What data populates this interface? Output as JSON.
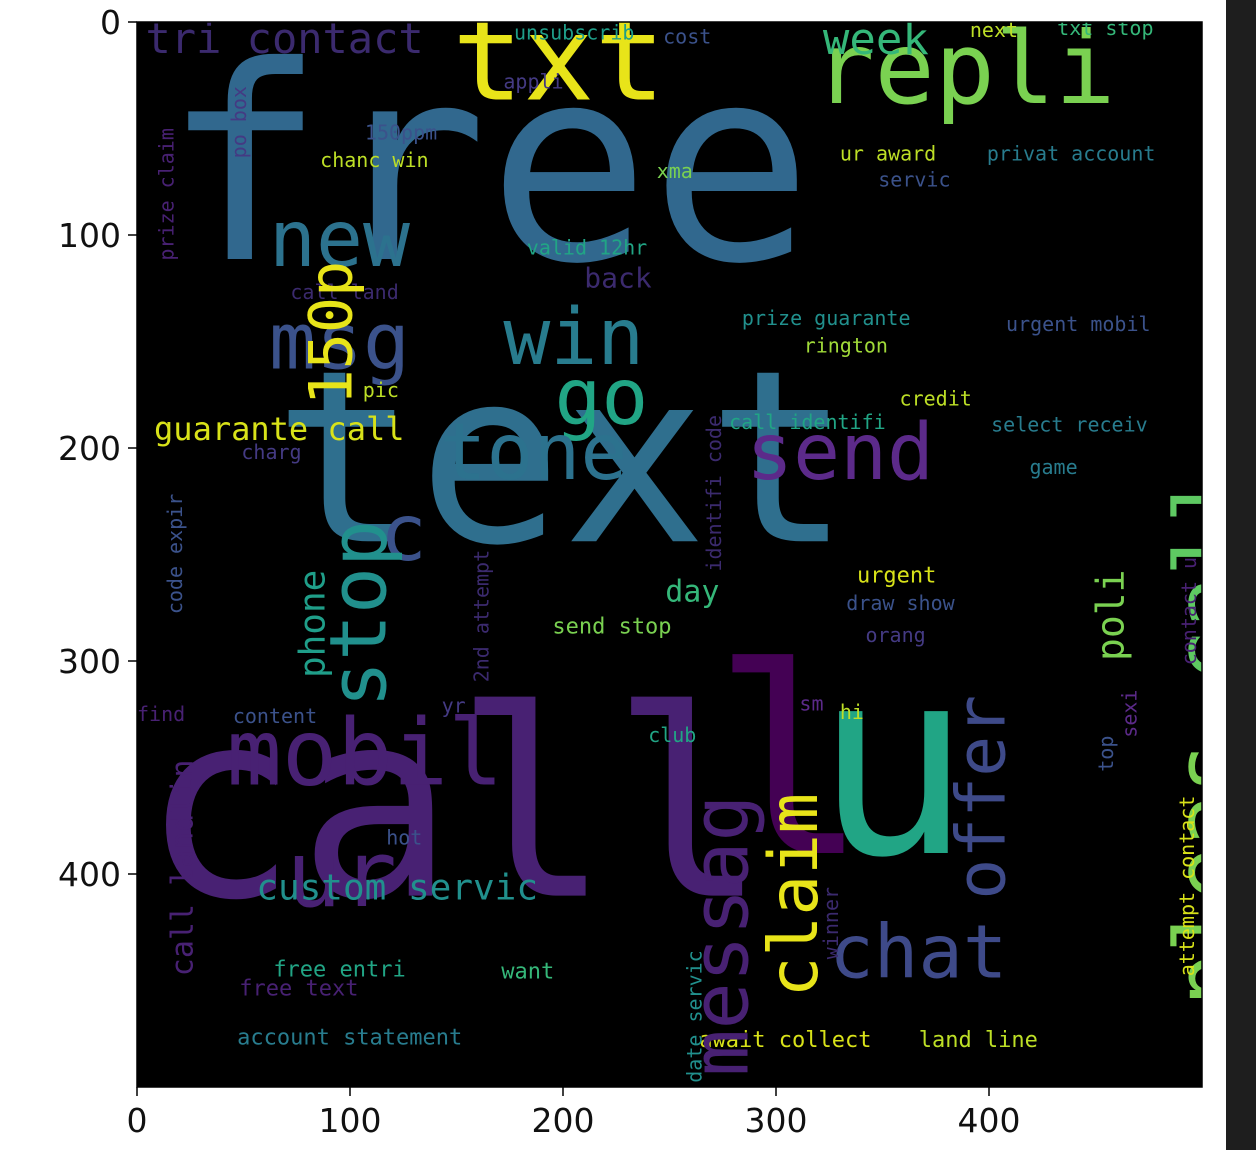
{
  "chart_data": {
    "type": "wordcloud",
    "xlim": [
      0,
      500
    ],
    "ylim": [
      500,
      0
    ],
    "xticks": [
      0,
      100,
      200,
      300,
      400
    ],
    "yticks": [
      0,
      100,
      200,
      300,
      400
    ],
    "background": "#000000",
    "grid": false,
    "words": [
      {
        "text": "free",
        "x": 12,
        "y": 17,
        "size": 270,
        "color": "#31688e",
        "rotate": false
      },
      {
        "text": "text",
        "x": 64,
        "y": 160,
        "size": 240,
        "color": "#2f6f8e",
        "rotate": false
      },
      {
        "text": "call",
        "x": 2,
        "y": 320,
        "size": 260,
        "color": "#482173",
        "rotate": false
      },
      {
        "text": "u",
        "x": 318,
        "y": 300,
        "size": 260,
        "color": "#21a585",
        "rotate": false
      },
      {
        "text": "l",
        "x": 270,
        "y": 300,
        "size": 260,
        "color": "#440154",
        "rotate": false
      },
      {
        "text": "txt",
        "x": 148,
        "y": -5,
        "size": 118,
        "color": "#e8e419",
        "rotate": false
      },
      {
        "text": "repli",
        "x": 318,
        "y": 3,
        "size": 100,
        "color": "#7ad151",
        "rotate": false
      },
      {
        "text": "tri contact",
        "x": 4,
        "y": 0,
        "size": 42,
        "color": "#3b2a6e",
        "rotate": false
      },
      {
        "text": "week",
        "x": 322,
        "y": 0,
        "size": 44,
        "color": "#35b779",
        "rotate": false
      },
      {
        "text": "unsubscrib",
        "x": 177,
        "y": 1,
        "size": 20,
        "color": "#1f9e89",
        "rotate": false
      },
      {
        "text": "cost",
        "x": 247,
        "y": 3,
        "size": 20,
        "color": "#3b528b",
        "rotate": false
      },
      {
        "text": "next",
        "x": 391,
        "y": 0,
        "size": 20,
        "color": "#bddf26",
        "rotate": false
      },
      {
        "text": "txt stop",
        "x": 432,
        "y": -1,
        "size": 20,
        "color": "#35b779",
        "rotate": false
      },
      {
        "text": "appli",
        "x": 172,
        "y": 24,
        "size": 20,
        "color": "#443a83",
        "rotate": false
      },
      {
        "text": "150ppm",
        "x": 107,
        "y": 48,
        "size": 20,
        "color": "#3b528b",
        "rotate": false
      },
      {
        "text": "chanc win",
        "x": 86,
        "y": 61,
        "size": 20,
        "color": "#bddf26",
        "rotate": false
      },
      {
        "text": "ur award",
        "x": 330,
        "y": 58,
        "size": 20,
        "color": "#bddf26",
        "rotate": false
      },
      {
        "text": "privat account",
        "x": 399,
        "y": 58,
        "size": 20,
        "color": "#287c8e",
        "rotate": false
      },
      {
        "text": "xma",
        "x": 244,
        "y": 66,
        "size": 20,
        "color": "#7ad151",
        "rotate": false
      },
      {
        "text": "servic",
        "x": 348,
        "y": 70,
        "size": 20,
        "color": "#3b528b",
        "rotate": false
      },
      {
        "text": "new",
        "x": 62,
        "y": 88,
        "size": 78,
        "color": "#2c728e",
        "rotate": false
      },
      {
        "text": "msg",
        "x": 62,
        "y": 136,
        "size": 78,
        "color": "#3b528b",
        "rotate": false
      },
      {
        "text": "win",
        "x": 172,
        "y": 134,
        "size": 78,
        "color": "#287c8e",
        "rotate": false
      },
      {
        "text": "go",
        "x": 196,
        "y": 162,
        "size": 78,
        "color": "#21a585",
        "rotate": false
      },
      {
        "text": "valid 12hr",
        "x": 183,
        "y": 102,
        "size": 20,
        "color": "#21a585",
        "rotate": false
      },
      {
        "text": "back",
        "x": 210,
        "y": 115,
        "size": 28,
        "color": "#3b2a6e",
        "rotate": false
      },
      {
        "text": "call land",
        "x": 72,
        "y": 123,
        "size": 20,
        "color": "#3b2a6e",
        "rotate": false
      },
      {
        "text": "prize guarante",
        "x": 284,
        "y": 135,
        "size": 20,
        "color": "#21908d",
        "rotate": false
      },
      {
        "text": "urgent mobil",
        "x": 408,
        "y": 138,
        "size": 20,
        "color": "#3b528b",
        "rotate": false
      },
      {
        "text": "rington",
        "x": 313,
        "y": 148,
        "size": 20,
        "color": "#a0da39",
        "rotate": false
      },
      {
        "text": "pic",
        "x": 106,
        "y": 169,
        "size": 20,
        "color": "#bddf26",
        "rotate": false
      },
      {
        "text": "credit",
        "x": 358,
        "y": 173,
        "size": 20,
        "color": "#bddf26",
        "rotate": false
      },
      {
        "text": "guarante call",
        "x": 8,
        "y": 185,
        "size": 32,
        "color": "#d8e219",
        "rotate": false
      },
      {
        "text": "tone",
        "x": 142,
        "y": 188,
        "size": 78,
        "color": "#2c728e",
        "rotate": false
      },
      {
        "text": "send",
        "x": 286,
        "y": 188,
        "size": 78,
        "color": "#5c2a8a",
        "rotate": false
      },
      {
        "text": "call identifi",
        "x": 278,
        "y": 184,
        "size": 20,
        "color": "#21a585",
        "rotate": false
      },
      {
        "text": "select receiv",
        "x": 401,
        "y": 185,
        "size": 20,
        "color": "#287c8e",
        "rotate": false
      },
      {
        "text": "charg",
        "x": 49,
        "y": 198,
        "size": 20,
        "color": "#443a83",
        "rotate": false
      },
      {
        "text": "game",
        "x": 419,
        "y": 205,
        "size": 20,
        "color": "#287c8e",
        "rotate": false
      },
      {
        "text": "c",
        "x": 114,
        "y": 226,
        "size": 78,
        "color": "#3b528b",
        "rotate": false
      },
      {
        "text": "urgent",
        "x": 338,
        "y": 256,
        "size": 22,
        "color": "#d8e219",
        "rotate": false
      },
      {
        "text": "day",
        "x": 248,
        "y": 262,
        "size": 30,
        "color": "#35b779",
        "rotate": false
      },
      {
        "text": "draw show",
        "x": 333,
        "y": 269,
        "size": 20,
        "color": "#3b528b",
        "rotate": false
      },
      {
        "text": "send stop",
        "x": 195,
        "y": 280,
        "size": 22,
        "color": "#7ad151",
        "rotate": false
      },
      {
        "text": "orang",
        "x": 342,
        "y": 284,
        "size": 20,
        "color": "#443a83",
        "rotate": false
      },
      {
        "text": "find",
        "x": 0,
        "y": 321,
        "size": 20,
        "color": "#482173",
        "rotate": false
      },
      {
        "text": "content",
        "x": 45,
        "y": 322,
        "size": 20,
        "color": "#3b528b",
        "rotate": false
      },
      {
        "text": "yr",
        "x": 143,
        "y": 317,
        "size": 20,
        "color": "#443a83",
        "rotate": false
      },
      {
        "text": "sm",
        "x": 311,
        "y": 316,
        "size": 20,
        "color": "#5c2a8a",
        "rotate": false
      },
      {
        "text": "hi",
        "x": 330,
        "y": 320,
        "size": 20,
        "color": "#bddf26",
        "rotate": false
      },
      {
        "text": "club",
        "x": 240,
        "y": 331,
        "size": 20,
        "color": "#21a585",
        "rotate": false
      },
      {
        "text": "mobil",
        "x": 42,
        "y": 326,
        "size": 92,
        "color": "#482173",
        "rotate": false
      },
      {
        "text": "ur",
        "x": 70,
        "y": 383,
        "size": 92,
        "color": "#482173",
        "rotate": false
      },
      {
        "text": "hot",
        "x": 117,
        "y": 379,
        "size": 20,
        "color": "#3b528b",
        "rotate": false
      },
      {
        "text": "custom servic",
        "x": 56,
        "y": 400,
        "size": 36,
        "color": "#21908d",
        "rotate": false
      },
      {
        "text": "chat",
        "x": 325,
        "y": 423,
        "size": 74,
        "color": "#3e4a89",
        "rotate": false
      },
      {
        "text": "free entri",
        "x": 64,
        "y": 441,
        "size": 22,
        "color": "#21a585",
        "rotate": false
      },
      {
        "text": "want",
        "x": 171,
        "y": 442,
        "size": 22,
        "color": "#35b779",
        "rotate": false
      },
      {
        "text": "free text",
        "x": 48,
        "y": 450,
        "size": 22,
        "color": "#482173",
        "rotate": false
      },
      {
        "text": "account statement",
        "x": 47,
        "y": 473,
        "size": 22,
        "color": "#287c8e",
        "rotate": false
      },
      {
        "text": "await collect",
        "x": 264,
        "y": 474,
        "size": 22,
        "color": "#d8e219",
        "rotate": false
      },
      {
        "text": "land line",
        "x": 367,
        "y": 474,
        "size": 22,
        "color": "#bddf26",
        "rotate": false
      },
      {
        "text": "stop",
        "x": 90,
        "y": 322,
        "size": 78,
        "color": "#21908d",
        "rotate": true
      },
      {
        "text": "150p",
        "x": 80,
        "y": 180,
        "size": 60,
        "color": "#e8e419",
        "rotate": true
      },
      {
        "text": "phone",
        "x": 76,
        "y": 308,
        "size": 36,
        "color": "#1f9e89",
        "rotate": true
      },
      {
        "text": "messag",
        "x": 260,
        "y": 495,
        "size": 78,
        "color": "#482173",
        "rotate": true
      },
      {
        "text": "claim",
        "x": 296,
        "y": 458,
        "size": 68,
        "color": "#e8e419",
        "rotate": true
      },
      {
        "text": "offer",
        "x": 384,
        "y": 412,
        "size": 68,
        "color": "#3e4a89",
        "rotate": true
      },
      {
        "text": "pleas",
        "x": 486,
        "y": 462,
        "size": 88,
        "color": "#7ad151",
        "rotate": true
      },
      {
        "text": "call",
        "x": 486,
        "y": 310,
        "size": 88,
        "color": "#5ec962",
        "rotate": true
      },
      {
        "text": "poli",
        "x": 450,
        "y": 300,
        "size": 38,
        "color": "#7ad151",
        "rotate": true
      },
      {
        "text": "po box",
        "x": 44,
        "y": 64,
        "size": 20,
        "color": "#443a83",
        "rotate": true
      },
      {
        "text": "prize claim",
        "x": 10,
        "y": 112,
        "size": 20,
        "color": "#482173",
        "rotate": true
      },
      {
        "text": "code expir",
        "x": 14,
        "y": 278,
        "size": 20,
        "color": "#3b528b",
        "rotate": true
      },
      {
        "text": "2nd attempt",
        "x": 158,
        "y": 310,
        "size": 20,
        "color": "#3b2a6e",
        "rotate": true
      },
      {
        "text": "identifi code",
        "x": 267,
        "y": 258,
        "size": 20,
        "color": "#3b2a6e",
        "rotate": true
      },
      {
        "text": "call landlin",
        "x": 16,
        "y": 448,
        "size": 30,
        "color": "#482173",
        "rotate": true
      },
      {
        "text": "date servic",
        "x": 258,
        "y": 498,
        "size": 20,
        "color": "#21908d",
        "rotate": true
      },
      {
        "text": "winner",
        "x": 322,
        "y": 440,
        "size": 20,
        "color": "#3b2a6e",
        "rotate": true
      },
      {
        "text": "top",
        "x": 451,
        "y": 352,
        "size": 20,
        "color": "#3b528b",
        "rotate": true
      },
      {
        "text": "sexi",
        "x": 462,
        "y": 336,
        "size": 20,
        "color": "#5c2a8a",
        "rotate": true
      },
      {
        "text": "contact u",
        "x": 490,
        "y": 302,
        "size": 20,
        "color": "#482173",
        "rotate": true
      },
      {
        "text": "attempt contact",
        "x": 489,
        "y": 448,
        "size": 20,
        "color": "#d8e219",
        "rotate": true
      }
    ]
  }
}
